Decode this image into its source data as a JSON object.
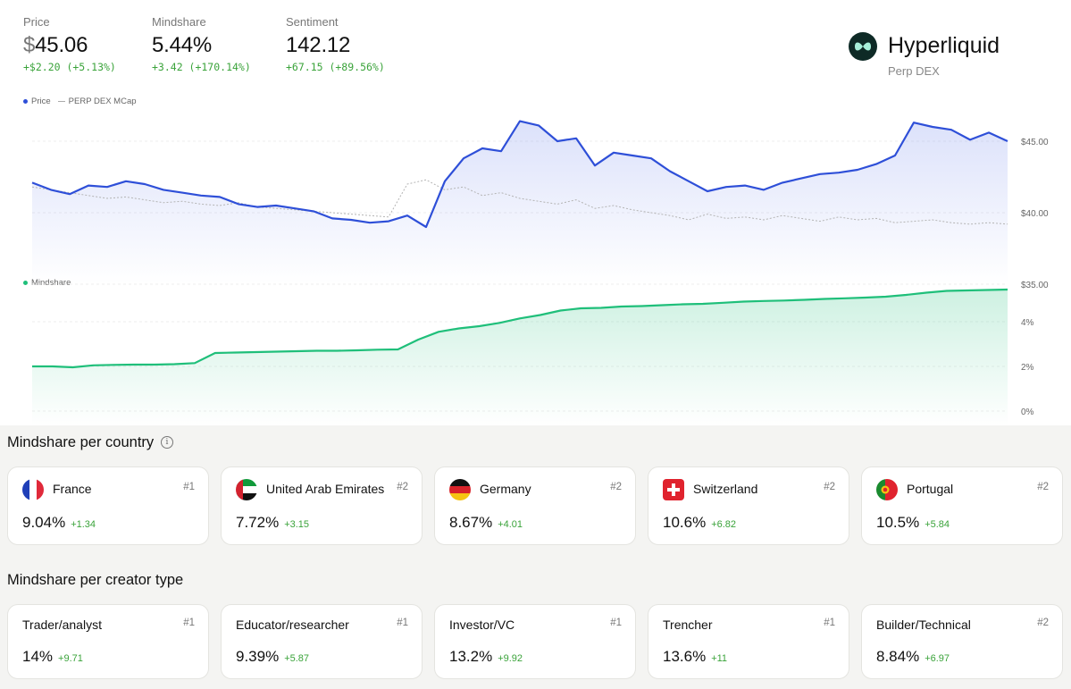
{
  "stats": [
    {
      "label": "Price",
      "currency": "$",
      "value": "45.06",
      "change": "+$2.20 (+5.13%)"
    },
    {
      "label": "Mindshare",
      "currency": "",
      "value": "5.44%",
      "change": "+3.42 (+170.14%)"
    },
    {
      "label": "Sentiment",
      "currency": "",
      "value": "142.12",
      "change": "+67.15 (+89.56%)"
    }
  ],
  "brand": {
    "name": "Hyperliquid",
    "subtitle": "Perp DEX",
    "logo_icon": "hyperliquid-logo-icon",
    "logo_color": "#0e2a26",
    "logo_accent": "#a6f0d9"
  },
  "price_chart": {
    "legend_price": "Price",
    "legend_mcap": "PERP DEX MCap",
    "price_color": "#2e4fd8",
    "mcap_color": "#b4b4b4",
    "y_ticks": [
      "$45.00",
      "$40.00",
      "$35.00"
    ],
    "ylim": [
      35,
      47.5
    ]
  },
  "mindshare_chart": {
    "legend": "Mindshare",
    "color": "#1fbf7a",
    "y_ticks": [
      "4%",
      "2%",
      "0%"
    ],
    "ylim": [
      0,
      6
    ]
  },
  "country_section": {
    "title": "Mindshare per country",
    "info_icon": "info-icon",
    "cards": [
      {
        "flag": "france-flag-icon",
        "name": "France",
        "rank": "#1",
        "value": "9.04%",
        "delta": "+1.34"
      },
      {
        "flag": "uae-flag-icon",
        "name": "United Arab Emirates",
        "rank": "#2",
        "value": "7.72%",
        "delta": "+3.15"
      },
      {
        "flag": "germany-flag-icon",
        "name": "Germany",
        "rank": "#2",
        "value": "8.67%",
        "delta": "+4.01"
      },
      {
        "flag": "switzerland-flag-icon",
        "name": "Switzerland",
        "rank": "#2",
        "value": "10.6%",
        "delta": "+6.82"
      },
      {
        "flag": "portugal-flag-icon",
        "name": "Portugal",
        "rank": "#2",
        "value": "10.5%",
        "delta": "+5.84"
      }
    ]
  },
  "creator_section": {
    "title": "Mindshare per creator type",
    "cards": [
      {
        "name": "Trader/analyst",
        "rank": "#1",
        "value": "14%",
        "delta": "+9.71"
      },
      {
        "name": "Educator/researcher",
        "rank": "#1",
        "value": "9.39%",
        "delta": "+5.87"
      },
      {
        "name": "Investor/VC",
        "rank": "#1",
        "value": "13.2%",
        "delta": "+9.92"
      },
      {
        "name": "Trencher",
        "rank": "#1",
        "value": "13.6%",
        "delta": "+11"
      },
      {
        "name": "Builder/Technical",
        "rank": "#2",
        "value": "8.84%",
        "delta": "+6.97"
      }
    ]
  },
  "chart_data": [
    {
      "type": "line",
      "series": [
        {
          "name": "Price",
          "values": [
            42.1,
            41.6,
            41.3,
            41.9,
            41.8,
            42.2,
            42.0,
            41.6,
            41.4,
            41.2,
            41.1,
            40.6,
            40.4,
            40.5,
            40.3,
            40.1,
            39.6,
            39.5,
            39.3,
            39.4,
            39.8,
            39.0,
            42.2,
            43.8,
            44.5,
            44.3,
            46.4,
            46.1,
            45.0,
            45.2,
            43.3,
            44.2,
            44.0,
            43.8,
            42.9,
            42.2,
            41.5,
            41.8,
            41.9,
            41.6,
            42.1,
            42.4,
            42.7,
            42.8,
            43.0,
            43.4,
            44.0,
            46.3,
            46.0,
            45.8,
            45.1,
            45.6,
            45.0
          ]
        },
        {
          "name": "PERP DEX MCap",
          "values": [
            41.8,
            41.6,
            41.4,
            41.2,
            41.0,
            41.1,
            40.9,
            40.7,
            40.8,
            40.6,
            40.5,
            40.7,
            40.4,
            40.3,
            40.2,
            40.1,
            40.0,
            39.9,
            39.8,
            39.7,
            42.0,
            42.3,
            41.6,
            41.8,
            41.2,
            41.4,
            41.0,
            40.8,
            40.6,
            40.9,
            40.3,
            40.5,
            40.2,
            40.0,
            39.8,
            39.5,
            39.9,
            39.6,
            39.7,
            39.5,
            39.8,
            39.6,
            39.4,
            39.7,
            39.5,
            39.6,
            39.3,
            39.4,
            39.5,
            39.3,
            39.2,
            39.3,
            39.2
          ]
        }
      ]
    },
    {
      "type": "area",
      "series": [
        {
          "name": "Mindshare",
          "values": [
            2.0,
            2.0,
            1.96,
            2.05,
            2.07,
            2.08,
            2.08,
            2.1,
            2.15,
            2.6,
            2.62,
            2.64,
            2.66,
            2.68,
            2.7,
            2.7,
            2.72,
            2.75,
            2.76,
            3.2,
            3.55,
            3.7,
            3.8,
            3.95,
            4.15,
            4.3,
            4.5,
            4.6,
            4.62,
            4.68,
            4.7,
            4.74,
            4.78,
            4.8,
            4.85,
            4.9,
            4.93,
            4.95,
            4.98,
            5.02,
            5.05,
            5.08,
            5.12,
            5.2,
            5.3,
            5.38,
            5.4,
            5.42,
            5.44
          ]
        }
      ]
    }
  ]
}
